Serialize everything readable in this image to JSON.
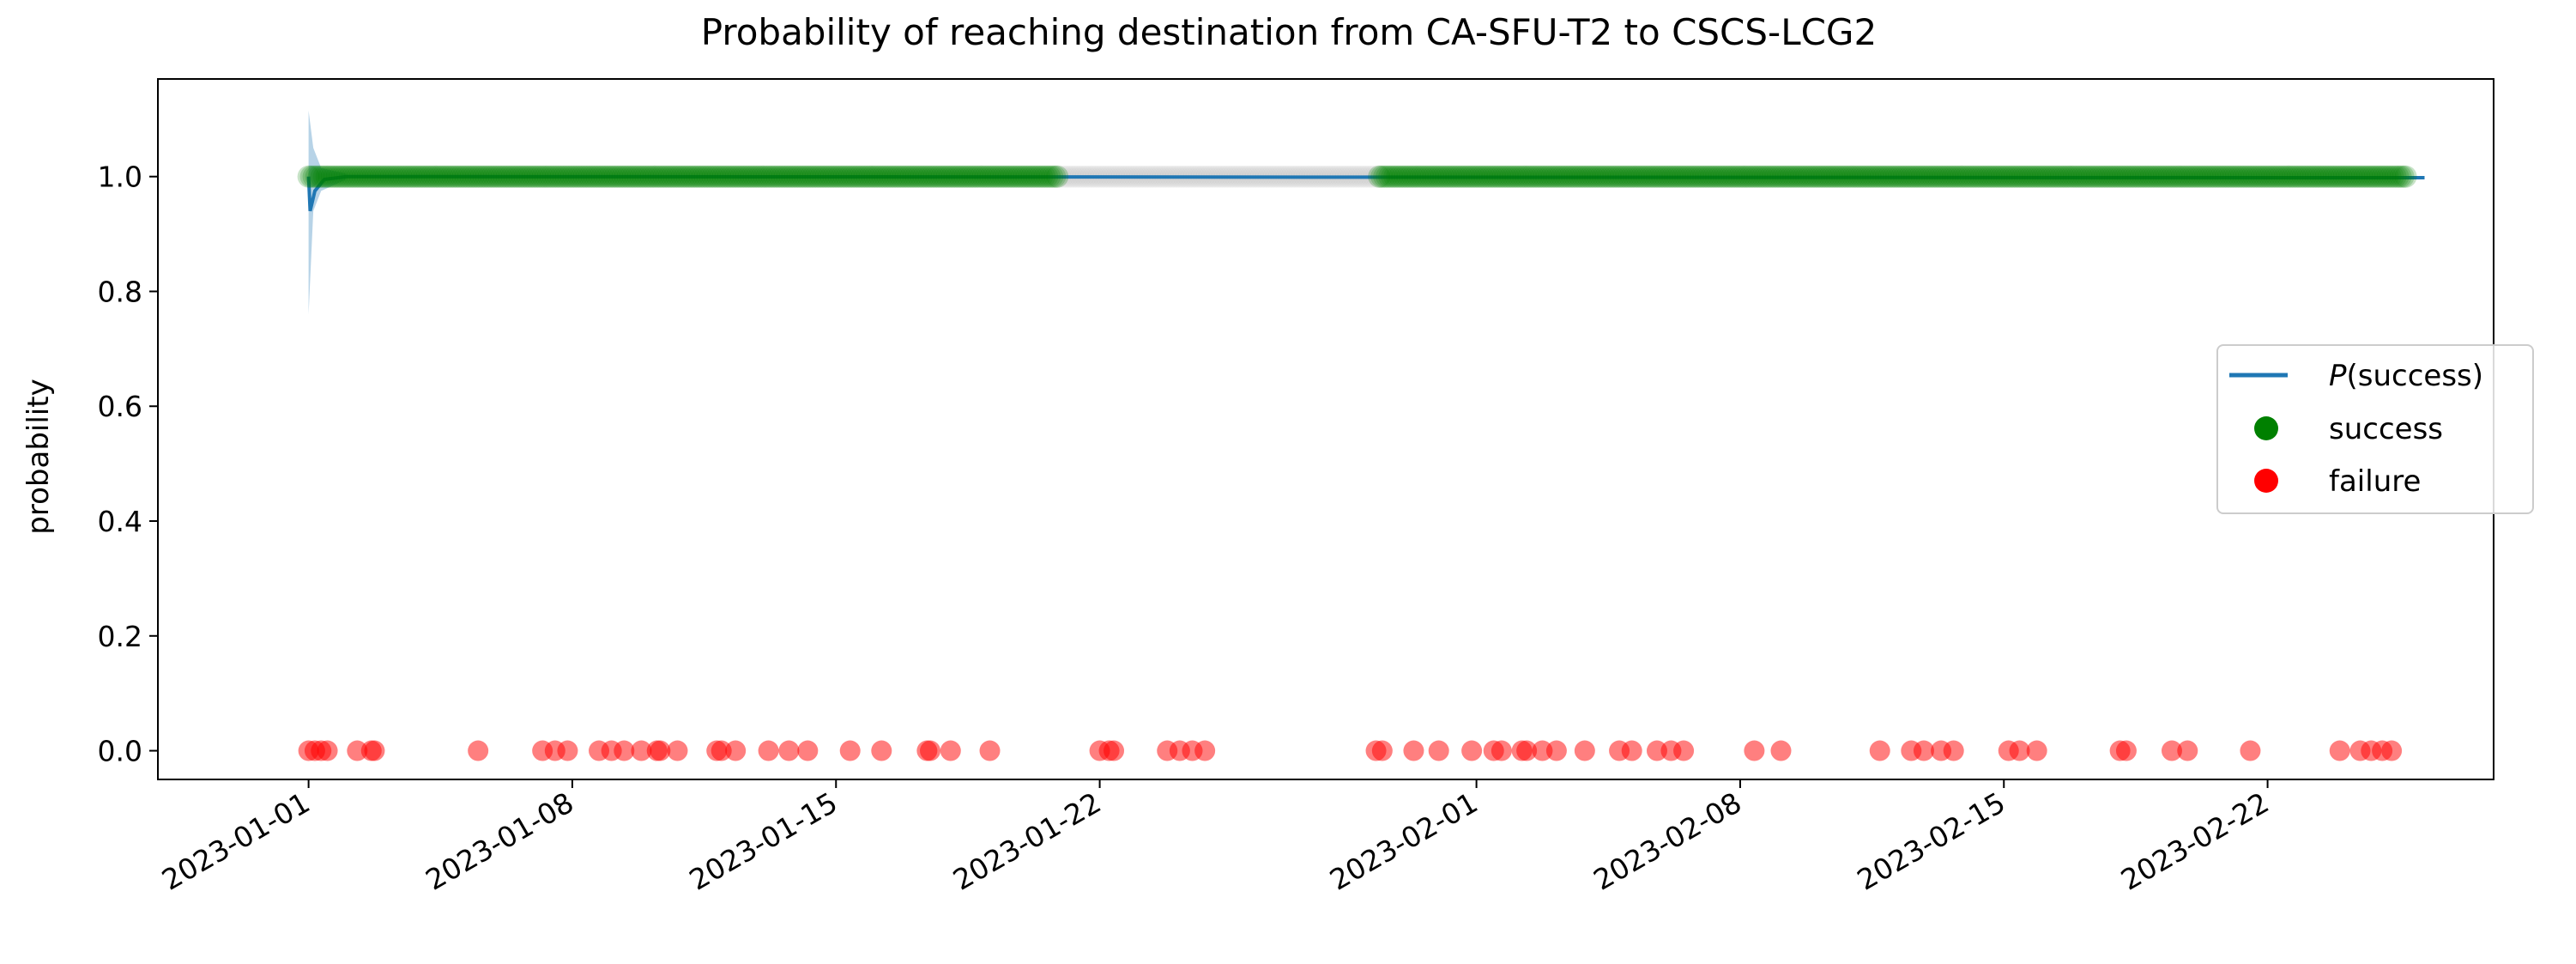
{
  "chart_data": {
    "type": "scatter",
    "title": "Probability of reaching destination from CA-SFU-T2 to CSCS-LCG2",
    "xlabel": "",
    "ylabel": "probability",
    "x_axis": "date",
    "xlim": [
      "2022-12-28",
      "2023-02-28"
    ],
    "ylim": [
      -0.05,
      1.17
    ],
    "x_ticks": [
      "2023-01-01",
      "2023-01-08",
      "2023-01-15",
      "2023-01-22",
      "2023-02-01",
      "2023-02-08",
      "2023-02-15",
      "2023-02-22"
    ],
    "y_ticks": [
      "0.0",
      "0.2",
      "0.4",
      "0.6",
      "0.8",
      "1.0"
    ],
    "y_tick_values": [
      0.0,
      0.2,
      0.4,
      0.6,
      0.8,
      1.0
    ],
    "grid": false,
    "legend_position": "center right",
    "legend": [
      {
        "label_prefix": "P",
        "label_suffix": "(success)",
        "marker": "line",
        "color": "#1f77b4"
      },
      {
        "label": "success",
        "marker": "dot",
        "color": "#008000"
      },
      {
        "label": "failure",
        "marker": "dot",
        "color": "#ff0000"
      }
    ],
    "series": [
      {
        "name": "P(success)",
        "kind": "line",
        "color": "#1f77b4",
        "points": [
          {
            "x": "2023-01-01 00:00",
            "y": 1.0
          },
          {
            "x": "2023-01-01 01:00",
            "y": 0.94
          },
          {
            "x": "2023-01-01 04:00",
            "y": 0.975
          },
          {
            "x": "2023-01-01 10:00",
            "y": 0.995
          },
          {
            "x": "2023-01-02 00:00",
            "y": 1.0
          },
          {
            "x": "2023-02-26 04:00",
            "y": 0.998
          }
        ]
      },
      {
        "name": "P(success) band",
        "kind": "band",
        "color": "#1f77b4",
        "points": [
          {
            "x": "2023-01-01 00:00",
            "low": 0.76,
            "high": 1.115
          },
          {
            "x": "2023-01-01 03:00",
            "low": 0.94,
            "high": 1.05
          },
          {
            "x": "2023-01-01 08:00",
            "low": 0.975,
            "high": 1.015
          },
          {
            "x": "2023-01-02 00:00",
            "low": 0.995,
            "high": 1.005
          }
        ]
      },
      {
        "name": "success",
        "kind": "dense_markers",
        "color": "#008000",
        "y": 1.0,
        "ranges": [
          {
            "start": "2023-01-01 00:00",
            "end": "2023-01-20 21:00"
          },
          {
            "start": "2023-01-29 10:00",
            "end": "2023-02-25 16:00"
          }
        ]
      },
      {
        "name": "gap",
        "kind": "dense_markers",
        "color": "#808080",
        "y": 1.0,
        "ranges": [
          {
            "start": "2023-01-20 21:00",
            "end": "2023-01-29 10:00"
          }
        ]
      },
      {
        "name": "failure",
        "kind": "markers",
        "color": "#ff0000",
        "y": 0.0,
        "x": [
          "2023-01-01 00:00",
          "2023-01-01 04:00",
          "2023-01-01 08:00",
          "2023-01-01 12:00",
          "2023-01-02 07:00",
          "2023-01-02 16:00",
          "2023-01-02 18:00",
          "2023-01-05 12:00",
          "2023-01-07 05:00",
          "2023-01-07 13:00",
          "2023-01-07 21:00",
          "2023-01-08 17:00",
          "2023-01-09 01:00",
          "2023-01-09 09:00",
          "2023-01-09 20:00",
          "2023-01-10 06:00",
          "2023-01-10 08:00",
          "2023-01-10 19:00",
          "2023-01-11 20:00",
          "2023-01-11 23:00",
          "2023-01-12 08:00",
          "2023-01-13 05:00",
          "2023-01-13 18:00",
          "2023-01-14 06:00",
          "2023-01-15 09:00",
          "2023-01-16 05:00",
          "2023-01-17 10:00",
          "2023-01-17 12:00",
          "2023-01-18 01:00",
          "2023-01-19 02:00",
          "2023-01-22 00:00",
          "2023-01-22 06:00",
          "2023-01-22 09:00",
          "2023-01-23 19:00",
          "2023-01-24 03:00",
          "2023-01-24 11:00",
          "2023-01-24 19:00",
          "2023-01-29 08:00",
          "2023-01-29 12:00",
          "2023-01-30 08:00",
          "2023-01-31 00:00",
          "2023-01-31 21:00",
          "2023-02-01 11:00",
          "2023-02-01 16:00",
          "2023-02-02 05:00",
          "2023-02-02 08:00",
          "2023-02-02 18:00",
          "2023-02-03 03:00",
          "2023-02-03 21:00",
          "2023-02-04 19:00",
          "2023-02-05 03:00",
          "2023-02-05 19:00",
          "2023-02-06 04:00",
          "2023-02-06 12:00",
          "2023-02-08 09:00",
          "2023-02-09 02:00",
          "2023-02-11 17:00",
          "2023-02-12 13:00",
          "2023-02-12 21:00",
          "2023-02-13 08:00",
          "2023-02-13 16:00",
          "2023-02-15 03:00",
          "2023-02-15 10:00",
          "2023-02-15 21:00",
          "2023-02-18 02:00",
          "2023-02-18 06:00",
          "2023-02-19 11:00",
          "2023-02-19 21:00",
          "2023-02-21 13:00",
          "2023-02-23 22:00",
          "2023-02-24 11:00",
          "2023-02-24 18:00",
          "2023-02-25 01:00",
          "2023-02-25 07:00"
        ]
      }
    ]
  }
}
